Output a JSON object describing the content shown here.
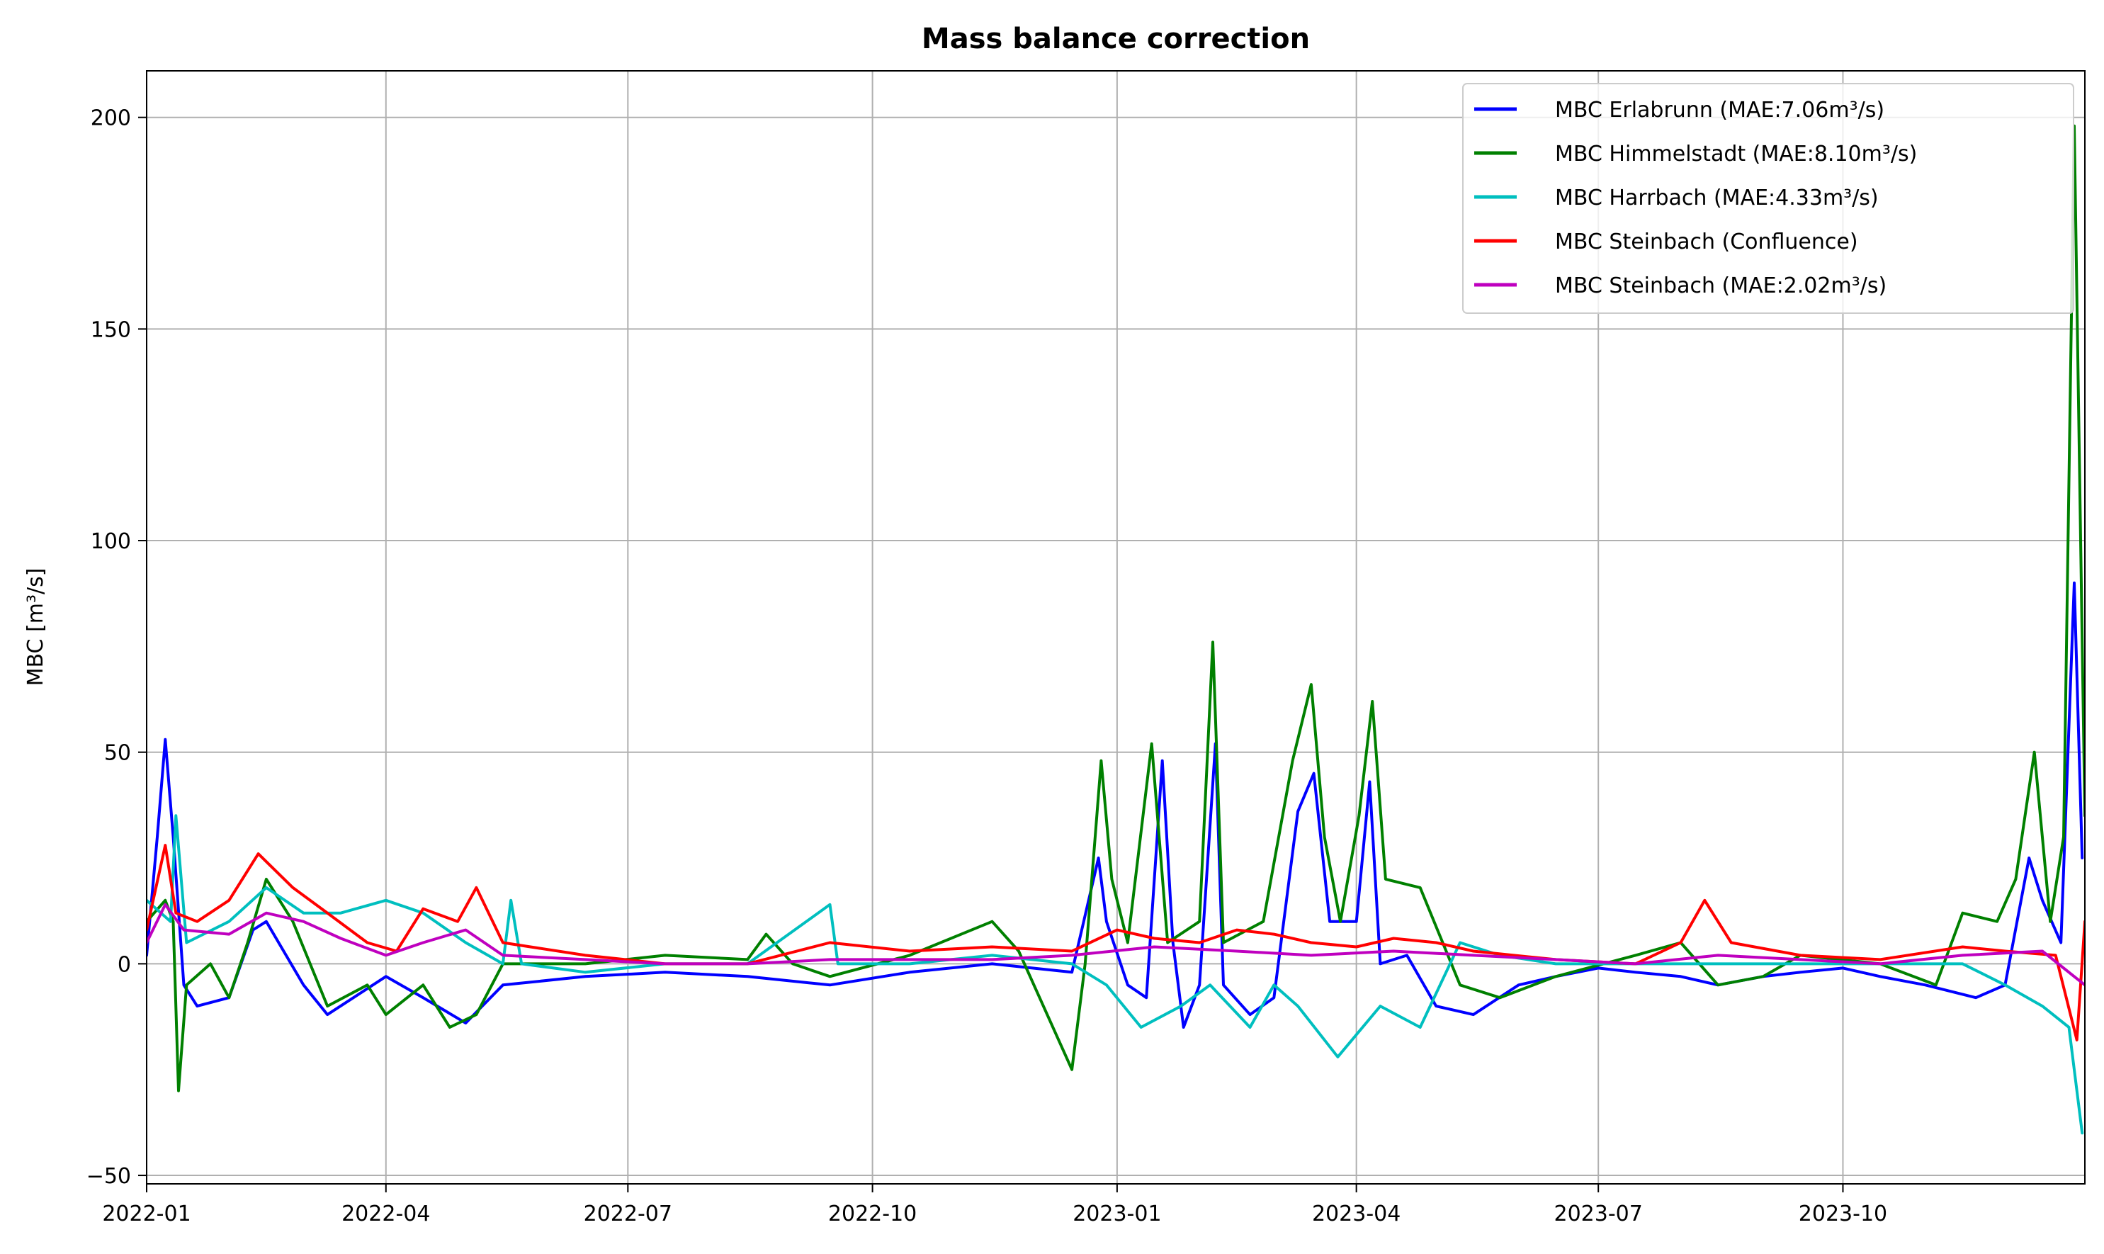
{
  "chart_data": {
    "type": "line",
    "title": "Mass balance correction",
    "xlabel": "",
    "ylabel": "MBC [m³/s]",
    "x_ticks": [
      "2022-01",
      "2022-04",
      "2022-07",
      "2022-10",
      "2023-01",
      "2023-04",
      "2023-07",
      "2023-10"
    ],
    "y_ticks": [
      -50,
      0,
      50,
      100,
      150,
      200
    ],
    "xlim": [
      "2022-01-01",
      "2023-12-31"
    ],
    "ylim": [
      -52,
      211
    ],
    "grid": true,
    "legend_position": "top-right",
    "series": [
      {
        "name": "MBC Erlabrunn (MAE:7.06m³/s)",
        "color": "#0000ff",
        "points": [
          [
            "2022-01-01",
            2
          ],
          [
            "2022-01-05",
            30
          ],
          [
            "2022-01-08",
            53
          ],
          [
            "2022-01-11",
            30
          ],
          [
            "2022-01-15",
            -5
          ],
          [
            "2022-01-20",
            -10
          ],
          [
            "2022-02-01",
            -8
          ],
          [
            "2022-02-10",
            8
          ],
          [
            "2022-02-15",
            10
          ],
          [
            "2022-03-01",
            -5
          ],
          [
            "2022-03-10",
            -12
          ],
          [
            "2022-04-01",
            -3
          ],
          [
            "2022-04-15",
            -8
          ],
          [
            "2022-05-01",
            -14
          ],
          [
            "2022-05-15",
            -5
          ],
          [
            "2022-06-15",
            -3
          ],
          [
            "2022-07-15",
            -2
          ],
          [
            "2022-08-15",
            -3
          ],
          [
            "2022-09-15",
            -5
          ],
          [
            "2022-10-15",
            -2
          ],
          [
            "2022-11-15",
            0
          ],
          [
            "2022-12-15",
            -2
          ],
          [
            "2022-12-25",
            25
          ],
          [
            "2022-12-28",
            10
          ],
          [
            "2023-01-05",
            -5
          ],
          [
            "2023-01-12",
            -8
          ],
          [
            "2023-01-18",
            48
          ],
          [
            "2023-01-22",
            5
          ],
          [
            "2023-01-26",
            -15
          ],
          [
            "2023-02-01",
            -5
          ],
          [
            "2023-02-07",
            52
          ],
          [
            "2023-02-10",
            -5
          ],
          [
            "2023-02-20",
            -12
          ],
          [
            "2023-03-01",
            -8
          ],
          [
            "2023-03-10",
            36
          ],
          [
            "2023-03-16",
            45
          ],
          [
            "2023-03-22",
            10
          ],
          [
            "2023-04-01",
            10
          ],
          [
            "2023-04-06",
            43
          ],
          [
            "2023-04-10",
            0
          ],
          [
            "2023-04-20",
            2
          ],
          [
            "2023-05-01",
            -10
          ],
          [
            "2023-05-15",
            -12
          ],
          [
            "2023-06-01",
            -5
          ],
          [
            "2023-06-15",
            -3
          ],
          [
            "2023-07-01",
            -1
          ],
          [
            "2023-07-15",
            -2
          ],
          [
            "2023-08-01",
            -3
          ],
          [
            "2023-08-15",
            -5
          ],
          [
            "2023-09-01",
            -3
          ],
          [
            "2023-09-15",
            -2
          ],
          [
            "2023-10-01",
            -1
          ],
          [
            "2023-10-15",
            -3
          ],
          [
            "2023-11-01",
            -5
          ],
          [
            "2023-11-20",
            -8
          ],
          [
            "2023-12-01",
            -5
          ],
          [
            "2023-12-10",
            25
          ],
          [
            "2023-12-15",
            15
          ],
          [
            "2023-12-22",
            5
          ],
          [
            "2023-12-27",
            90
          ],
          [
            "2023-12-30",
            25
          ]
        ]
      },
      {
        "name": "MBC Himmelstadt (MAE:8.10m³/s)",
        "color": "#008000",
        "points": [
          [
            "2022-01-01",
            10
          ],
          [
            "2022-01-08",
            15
          ],
          [
            "2022-01-11",
            10
          ],
          [
            "2022-01-13",
            -30
          ],
          [
            "2022-01-16",
            -5
          ],
          [
            "2022-01-25",
            0
          ],
          [
            "2022-02-01",
            -8
          ],
          [
            "2022-02-08",
            5
          ],
          [
            "2022-02-15",
            20
          ],
          [
            "2022-02-25",
            10
          ],
          [
            "2022-03-10",
            -10
          ],
          [
            "2022-03-25",
            -5
          ],
          [
            "2022-04-01",
            -12
          ],
          [
            "2022-04-15",
            -5
          ],
          [
            "2022-04-25",
            -15
          ],
          [
            "2022-05-05",
            -12
          ],
          [
            "2022-05-15",
            0
          ],
          [
            "2022-06-15",
            0
          ],
          [
            "2022-07-15",
            2
          ],
          [
            "2022-08-15",
            1
          ],
          [
            "2022-08-22",
            7
          ],
          [
            "2022-09-01",
            0
          ],
          [
            "2022-09-15",
            -3
          ],
          [
            "2022-10-15",
            2
          ],
          [
            "2022-11-15",
            10
          ],
          [
            "2022-11-25",
            3
          ],
          [
            "2022-12-15",
            -25
          ],
          [
            "2022-12-20",
            0
          ],
          [
            "2022-12-26",
            48
          ],
          [
            "2022-12-30",
            20
          ],
          [
            "2023-01-05",
            5
          ],
          [
            "2023-01-14",
            52
          ],
          [
            "2023-01-20",
            5
          ],
          [
            "2023-02-01",
            10
          ],
          [
            "2023-02-06",
            76
          ],
          [
            "2023-02-10",
            5
          ],
          [
            "2023-02-25",
            10
          ],
          [
            "2023-03-08",
            48
          ],
          [
            "2023-03-15",
            66
          ],
          [
            "2023-03-20",
            30
          ],
          [
            "2023-03-26",
            10
          ],
          [
            "2023-04-02",
            35
          ],
          [
            "2023-04-07",
            62
          ],
          [
            "2023-04-12",
            20
          ],
          [
            "2023-04-25",
            18
          ],
          [
            "2023-05-10",
            -5
          ],
          [
            "2023-05-25",
            -8
          ],
          [
            "2023-06-15",
            -3
          ],
          [
            "2023-07-15",
            2
          ],
          [
            "2023-08-01",
            5
          ],
          [
            "2023-08-15",
            -5
          ],
          [
            "2023-09-01",
            -3
          ],
          [
            "2023-09-15",
            2
          ],
          [
            "2023-10-15",
            0
          ],
          [
            "2023-11-05",
            -5
          ],
          [
            "2023-11-15",
            12
          ],
          [
            "2023-11-28",
            10
          ],
          [
            "2023-12-05",
            20
          ],
          [
            "2023-12-12",
            50
          ],
          [
            "2023-12-18",
            10
          ],
          [
            "2023-12-23",
            30
          ],
          [
            "2023-12-27",
            198
          ],
          [
            "2023-12-31",
            35
          ]
        ]
      },
      {
        "name": "MBC Harrbach (MAE:4.33m³/s)",
        "color": "#00bfbf",
        "points": [
          [
            "2022-01-01",
            15
          ],
          [
            "2022-01-10",
            10
          ],
          [
            "2022-01-12",
            35
          ],
          [
            "2022-01-16",
            5
          ],
          [
            "2022-02-01",
            10
          ],
          [
            "2022-02-15",
            18
          ],
          [
            "2022-03-01",
            12
          ],
          [
            "2022-03-15",
            12
          ],
          [
            "2022-04-01",
            15
          ],
          [
            "2022-04-15",
            12
          ],
          [
            "2022-05-01",
            5
          ],
          [
            "2022-05-15",
            0
          ],
          [
            "2022-05-18",
            15
          ],
          [
            "2022-05-22",
            0
          ],
          [
            "2022-06-15",
            -2
          ],
          [
            "2022-07-15",
            0
          ],
          [
            "2022-08-15",
            0
          ],
          [
            "2022-09-15",
            14
          ],
          [
            "2022-09-18",
            0
          ],
          [
            "2022-10-15",
            0
          ],
          [
            "2022-11-15",
            2
          ],
          [
            "2022-12-15",
            0
          ],
          [
            "2022-12-28",
            -5
          ],
          [
            "2023-01-10",
            -15
          ],
          [
            "2023-01-25",
            -10
          ],
          [
            "2023-02-05",
            -5
          ],
          [
            "2023-02-20",
            -15
          ],
          [
            "2023-03-01",
            -5
          ],
          [
            "2023-03-10",
            -10
          ],
          [
            "2023-03-25",
            -22
          ],
          [
            "2023-04-10",
            -10
          ],
          [
            "2023-04-25",
            -15
          ],
          [
            "2023-05-10",
            5
          ],
          [
            "2023-05-25",
            2
          ],
          [
            "2023-06-15",
            0
          ],
          [
            "2023-07-15",
            0
          ],
          [
            "2023-08-15",
            0
          ],
          [
            "2023-09-15",
            0
          ],
          [
            "2023-10-15",
            0
          ],
          [
            "2023-11-15",
            0
          ],
          [
            "2023-12-01",
            -5
          ],
          [
            "2023-12-15",
            -10
          ],
          [
            "2023-12-25",
            -15
          ],
          [
            "2023-12-30",
            -40
          ]
        ]
      },
      {
        "name": "MBC Steinbach (Confluence)",
        "color": "#ff0000",
        "points": [
          [
            "2022-01-01",
            8
          ],
          [
            "2022-01-08",
            28
          ],
          [
            "2022-01-12",
            12
          ],
          [
            "2022-01-20",
            10
          ],
          [
            "2022-02-01",
            15
          ],
          [
            "2022-02-12",
            26
          ],
          [
            "2022-02-25",
            18
          ],
          [
            "2022-03-10",
            12
          ],
          [
            "2022-03-25",
            5
          ],
          [
            "2022-04-05",
            3
          ],
          [
            "2022-04-15",
            13
          ],
          [
            "2022-04-28",
            10
          ],
          [
            "2022-05-05",
            18
          ],
          [
            "2022-05-15",
            5
          ],
          [
            "2022-06-15",
            2
          ],
          [
            "2022-07-15",
            0
          ],
          [
            "2022-08-15",
            0
          ],
          [
            "2022-09-15",
            5
          ],
          [
            "2022-10-15",
            3
          ],
          [
            "2022-11-15",
            4
          ],
          [
            "2022-12-15",
            3
          ],
          [
            "2023-01-01",
            8
          ],
          [
            "2023-01-15",
            6
          ],
          [
            "2023-02-01",
            5
          ],
          [
            "2023-02-15",
            8
          ],
          [
            "2023-03-01",
            7
          ],
          [
            "2023-03-15",
            5
          ],
          [
            "2023-04-01",
            4
          ],
          [
            "2023-04-15",
            6
          ],
          [
            "2023-05-01",
            5
          ],
          [
            "2023-05-15",
            3
          ],
          [
            "2023-06-15",
            1
          ],
          [
            "2023-07-15",
            0
          ],
          [
            "2023-08-01",
            5
          ],
          [
            "2023-08-10",
            15
          ],
          [
            "2023-08-20",
            5
          ],
          [
            "2023-09-15",
            2
          ],
          [
            "2023-10-15",
            1
          ],
          [
            "2023-11-15",
            4
          ],
          [
            "2023-12-01",
            3
          ],
          [
            "2023-12-20",
            2
          ],
          [
            "2023-12-28",
            -18
          ],
          [
            "2023-12-31",
            10
          ]
        ]
      },
      {
        "name": "MBC Steinbach (MAE:2.02m³/s)",
        "color": "#bf00bf",
        "points": [
          [
            "2022-01-01",
            5
          ],
          [
            "2022-01-08",
            14
          ],
          [
            "2022-01-15",
            8
          ],
          [
            "2022-02-01",
            7
          ],
          [
            "2022-02-15",
            12
          ],
          [
            "2022-03-01",
            10
          ],
          [
            "2022-03-15",
            6
          ],
          [
            "2022-04-01",
            2
          ],
          [
            "2022-04-15",
            5
          ],
          [
            "2022-05-01",
            8
          ],
          [
            "2022-05-15",
            2
          ],
          [
            "2022-06-15",
            1
          ],
          [
            "2022-07-15",
            0
          ],
          [
            "2022-08-15",
            0
          ],
          [
            "2022-09-15",
            1
          ],
          [
            "2022-10-15",
            1
          ],
          [
            "2022-11-15",
            1
          ],
          [
            "2022-12-15",
            2
          ],
          [
            "2023-01-15",
            4
          ],
          [
            "2023-02-15",
            3
          ],
          [
            "2023-03-15",
            2
          ],
          [
            "2023-04-15",
            3
          ],
          [
            "2023-05-15",
            2
          ],
          [
            "2023-06-15",
            1
          ],
          [
            "2023-07-15",
            0
          ],
          [
            "2023-08-15",
            2
          ],
          [
            "2023-09-15",
            1
          ],
          [
            "2023-10-15",
            0
          ],
          [
            "2023-11-15",
            2
          ],
          [
            "2023-12-15",
            3
          ],
          [
            "2023-12-31",
            -5
          ]
        ]
      }
    ]
  }
}
